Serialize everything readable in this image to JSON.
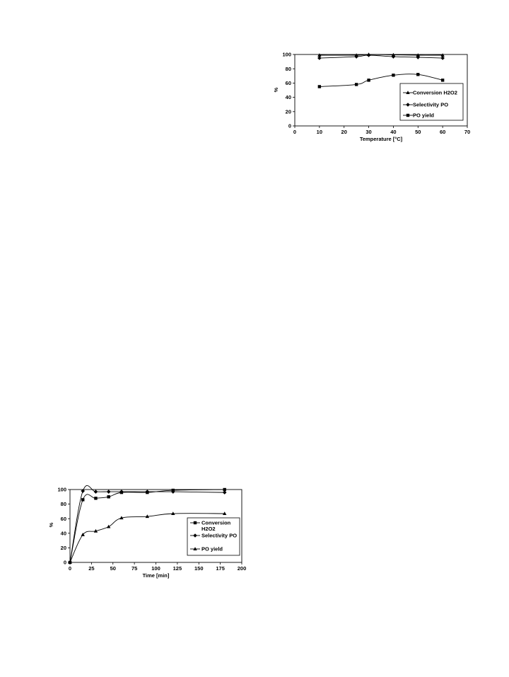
{
  "chart_data": [
    {
      "type": "line",
      "xlabel": "Temperature [°C]",
      "ylabel": "%",
      "xlim": [
        0,
        70
      ],
      "ylim": [
        0,
        100
      ],
      "xticks": [
        0,
        10,
        20,
        30,
        40,
        50,
        60,
        70
      ],
      "yticks": [
        0,
        20,
        40,
        60,
        80,
        100
      ],
      "legend_position": "bottom-right",
      "series": [
        {
          "name": "Conversion  H2O2",
          "marker": "triangle",
          "x": [
            10,
            25,
            30,
            40,
            50,
            60
          ],
          "y": [
            99,
            99,
            100,
            99.5,
            99,
            99
          ]
        },
        {
          "name": "Selectivity PO",
          "marker": "diamond",
          "x": [
            10,
            25,
            30,
            40,
            50,
            60
          ],
          "y": [
            95,
            97,
            99,
            97,
            96,
            95
          ]
        },
        {
          "name": "PO yield",
          "marker": "square",
          "x": [
            10,
            25,
            30,
            40,
            50,
            60
          ],
          "y": [
            55,
            58,
            64,
            71,
            72,
            64
          ]
        }
      ]
    },
    {
      "type": "line",
      "xlabel": "Time [min]",
      "ylabel": "%",
      "xlim": [
        0,
        200
      ],
      "ylim": [
        0,
        100
      ],
      "xticks": [
        0,
        25,
        50,
        75,
        100,
        125,
        150,
        175,
        200
      ],
      "yticks": [
        0,
        20,
        40,
        60,
        80,
        100
      ],
      "legend_position": "right",
      "series": [
        {
          "name": "Conversion H2O2",
          "marker": "square",
          "x": [
            0,
            15,
            30,
            45,
            60,
            90,
            120,
            180
          ],
          "y": [
            0,
            86,
            88,
            90,
            96,
            96,
            99,
            100
          ]
        },
        {
          "name": "Selectivity PO",
          "marker": "diamond",
          "x": [
            0,
            15,
            30,
            45,
            60,
            90,
            120,
            180
          ],
          "y": [
            0,
            98,
            97,
            97,
            97,
            97,
            97,
            96
          ]
        },
        {
          "name": "PO yield",
          "marker": "triangle",
          "x": [
            0,
            15,
            30,
            45,
            60,
            90,
            120,
            180
          ],
          "y": [
            0,
            38,
            43,
            49,
            61,
            63,
            67,
            67
          ]
        }
      ]
    }
  ]
}
